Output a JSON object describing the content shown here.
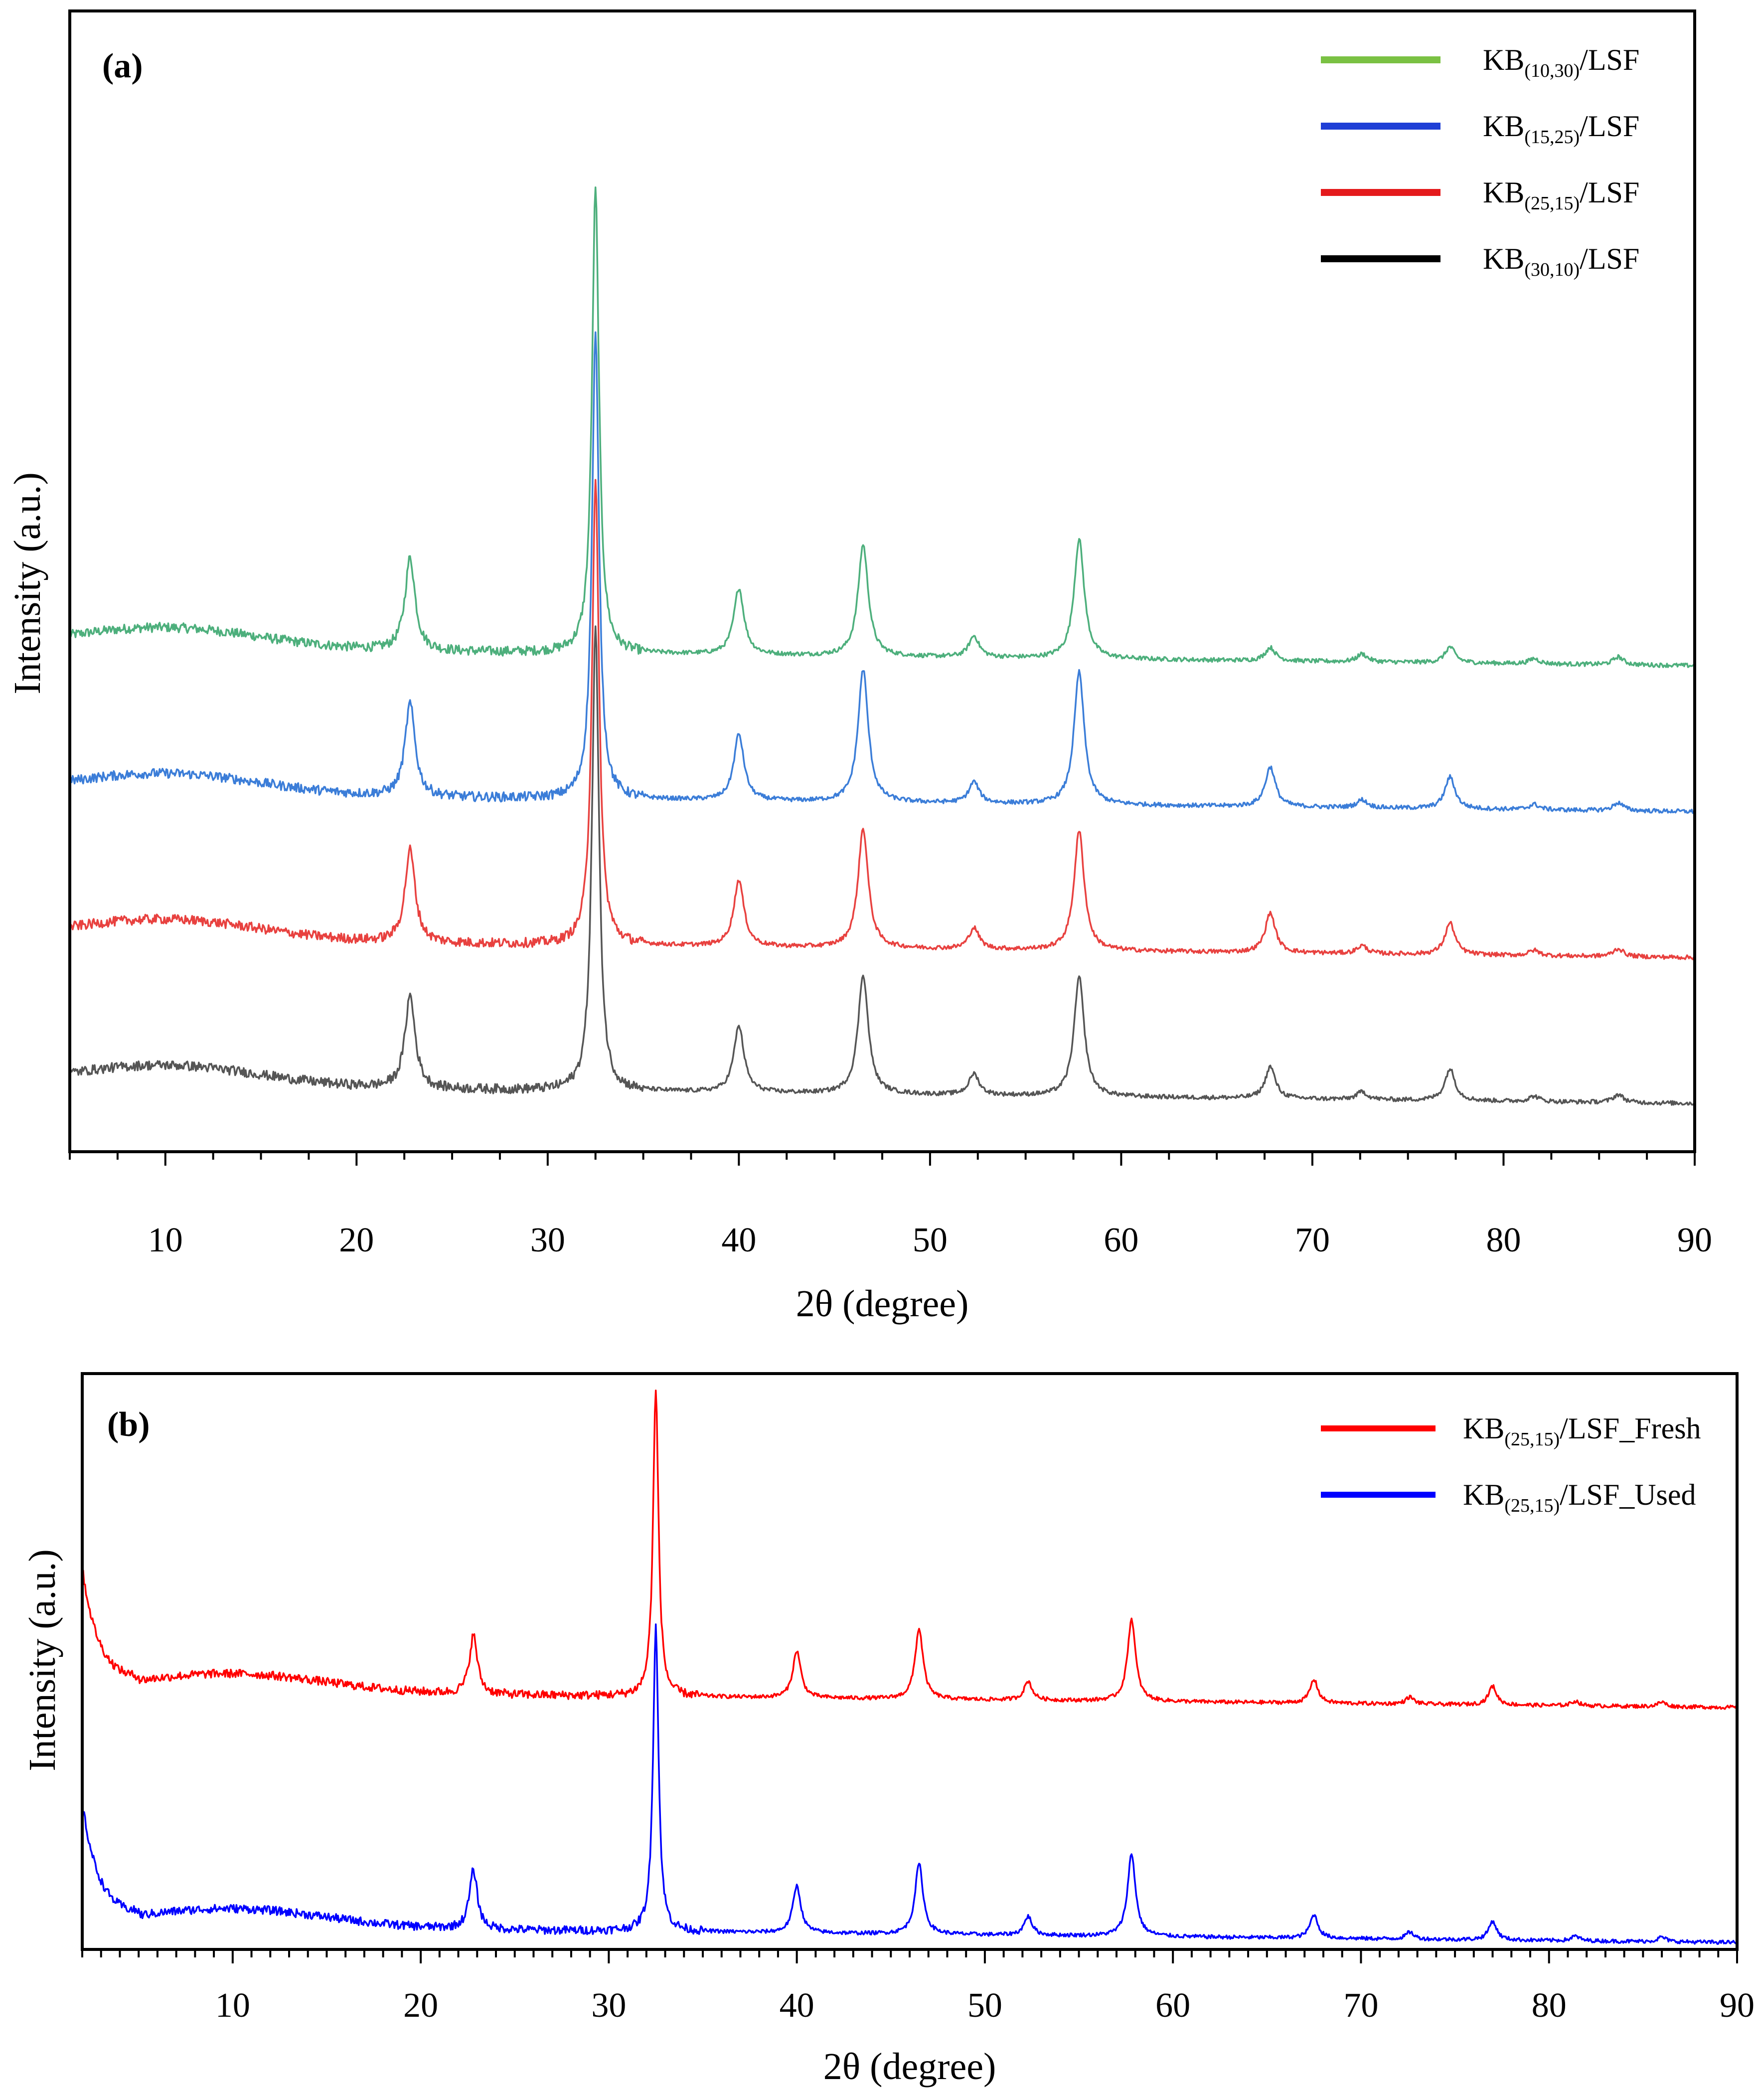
{
  "chart_data": [
    {
      "type": "line",
      "panel": "(a)",
      "xlabel": "2θ (degree)",
      "ylabel": "Intensity (a.u.)",
      "xlim": [
        5,
        90
      ],
      "xticks": [
        10,
        20,
        30,
        40,
        50,
        60,
        70,
        80,
        90
      ],
      "y_axis_ticks": false,
      "series": [
        {
          "name": "KB(10,30)/LSF",
          "name_main": "KB",
          "name_sub": "(10,30)",
          "name_tail": "/LSF",
          "legend_color": "#7ac143",
          "line_color": "#4daf7c",
          "baseline": 1.9,
          "peaks": [
            [
              22.8,
              0.35
            ],
            [
              32.5,
              1.75
            ],
            [
              40.0,
              0.25
            ],
            [
              46.5,
              0.42
            ],
            [
              52.3,
              0.08
            ],
            [
              57.8,
              0.45
            ],
            [
              67.8,
              0.05
            ],
            [
              72.6,
              0.03
            ],
            [
              77.2,
              0.06
            ],
            [
              81.6,
              0.02
            ],
            [
              86.0,
              0.03
            ]
          ]
        },
        {
          "name": "KB(15,25)/LSF",
          "name_main": "KB",
          "name_sub": "(15,25)",
          "name_tail": "/LSF",
          "legend_color": "#1f3fd6",
          "line_color": "#3b7dd8",
          "baseline": 1.35,
          "peaks": [
            [
              22.8,
              0.35
            ],
            [
              32.5,
              1.75
            ],
            [
              40.0,
              0.25
            ],
            [
              46.5,
              0.5
            ],
            [
              52.3,
              0.08
            ],
            [
              57.8,
              0.5
            ],
            [
              67.8,
              0.15
            ],
            [
              72.6,
              0.03
            ],
            [
              77.2,
              0.12
            ],
            [
              81.6,
              0.02
            ],
            [
              86.0,
              0.03
            ]
          ]
        },
        {
          "name": "KB(25,15)/LSF",
          "name_main": "KB",
          "name_sub": "(25,15)",
          "name_tail": "/LSF",
          "legend_color": "#e41a1c",
          "line_color": "#e8413f",
          "baseline": 0.8,
          "peaks": [
            [
              22.8,
              0.35
            ],
            [
              32.5,
              1.75
            ],
            [
              40.0,
              0.25
            ],
            [
              46.5,
              0.45
            ],
            [
              52.3,
              0.08
            ],
            [
              57.8,
              0.45
            ],
            [
              67.8,
              0.15
            ],
            [
              72.6,
              0.03
            ],
            [
              77.2,
              0.12
            ],
            [
              81.6,
              0.02
            ],
            [
              86.0,
              0.03
            ]
          ]
        },
        {
          "name": "KB(30,10)/LSF",
          "name_main": "KB",
          "name_sub": "(30,10)",
          "name_tail": "/LSF",
          "legend_color": "#000000",
          "line_color": "#555555",
          "baseline": 0.25,
          "peaks": [
            [
              22.8,
              0.35
            ],
            [
              32.5,
              1.75
            ],
            [
              40.0,
              0.25
            ],
            [
              46.5,
              0.45
            ],
            [
              52.3,
              0.08
            ],
            [
              57.8,
              0.45
            ],
            [
              67.8,
              0.12
            ],
            [
              72.6,
              0.03
            ],
            [
              77.2,
              0.12
            ],
            [
              81.6,
              0.02
            ],
            [
              86.0,
              0.03
            ]
          ]
        }
      ]
    },
    {
      "type": "line",
      "panel": "(b)",
      "xlabel": "2θ (degree)",
      "ylabel": "Intensity (a.u.)",
      "xlim": [
        2,
        90
      ],
      "xticks": [
        10,
        20,
        30,
        40,
        50,
        60,
        70,
        80,
        90
      ],
      "y_axis_ticks": false,
      "series": [
        {
          "name": "KB(25,15)/LSF_Fresh",
          "name_main": "KB",
          "name_sub": "(25,15)",
          "name_tail": "/LSF_Fresh",
          "legend_color": "#ff0000",
          "line_color": "#ff0000",
          "baseline": 1.1,
          "peaks": [
            [
              22.8,
              0.25
            ],
            [
              32.5,
              1.3
            ],
            [
              40.0,
              0.2
            ],
            [
              46.5,
              0.3
            ],
            [
              52.3,
              0.08
            ],
            [
              57.8,
              0.35
            ],
            [
              67.5,
              0.1
            ],
            [
              72.6,
              0.03
            ],
            [
              77.0,
              0.08
            ],
            [
              81.4,
              0.02
            ],
            [
              86.0,
              0.02
            ]
          ]
        },
        {
          "name": "KB(25,15)/LSF_Used",
          "name_main": "KB",
          "name_sub": "(25,15)",
          "name_tail": "/LSF_Used",
          "legend_color": "#0000ff",
          "line_color": "#0000ff",
          "baseline": 0.1,
          "peaks": [
            [
              22.8,
              0.25
            ],
            [
              32.5,
              1.3
            ],
            [
              40.0,
              0.2
            ],
            [
              46.5,
              0.3
            ],
            [
              52.3,
              0.08
            ],
            [
              57.8,
              0.35
            ],
            [
              67.5,
              0.1
            ],
            [
              72.6,
              0.03
            ],
            [
              77.0,
              0.08
            ],
            [
              81.4,
              0.02
            ],
            [
              86.0,
              0.02
            ]
          ]
        }
      ]
    }
  ]
}
